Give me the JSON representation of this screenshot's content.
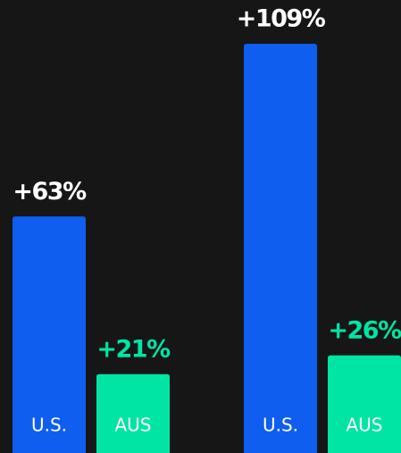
{
  "chart_data": {
    "type": "bar",
    "categories": [
      null,
      null
    ],
    "series": [
      {
        "name": "U.S.",
        "color": "#0f5eef",
        "values": [
          63,
          109
        ],
        "value_labels": [
          "+63%",
          "+109%"
        ]
      },
      {
        "name": "AUS",
        "color": "#00e5a3",
        "values": [
          21,
          26
        ],
        "value_labels": [
          "+21%",
          "+26%"
        ]
      }
    ]
  }
}
